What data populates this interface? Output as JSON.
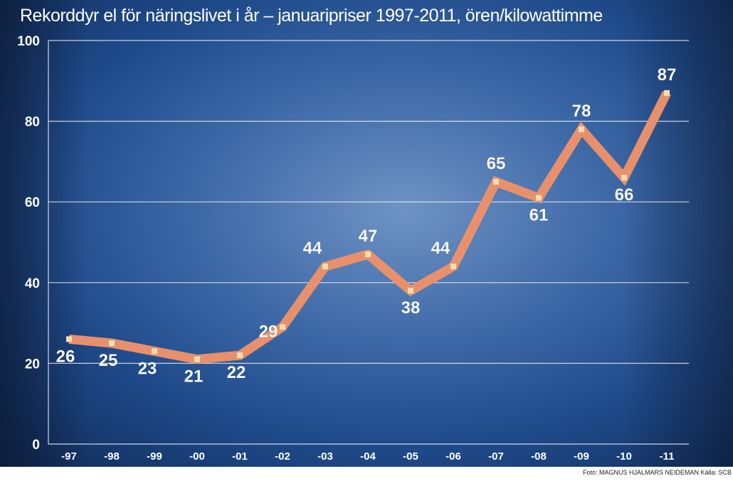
{
  "chart_data": {
    "type": "line",
    "title": "Rekorddyr el för näringslivet i år – januaripriser 1997-2011, ören/kilowattimme",
    "categories": [
      "-97",
      "-98",
      "-99",
      "-00",
      "-01",
      "-02",
      "-03",
      "-04",
      "-05",
      "-06",
      "-07",
      "-08",
      "-09",
      "-10",
      "-11"
    ],
    "values": [
      26,
      25,
      23,
      21,
      22,
      29,
      44,
      47,
      38,
      44,
      65,
      61,
      78,
      66,
      87
    ],
    "ylim": [
      0,
      100
    ],
    "yticks": [
      "0",
      "20",
      "40",
      "60",
      "80",
      "100"
    ],
    "grid": true,
    "colors": {
      "line": "#e8906c",
      "marker": "#f6dcae",
      "background": "#3f6aa8"
    }
  },
  "credit": "Foto: MAGNUS HJALMARS NEIDEMAN   Källa: SCB"
}
